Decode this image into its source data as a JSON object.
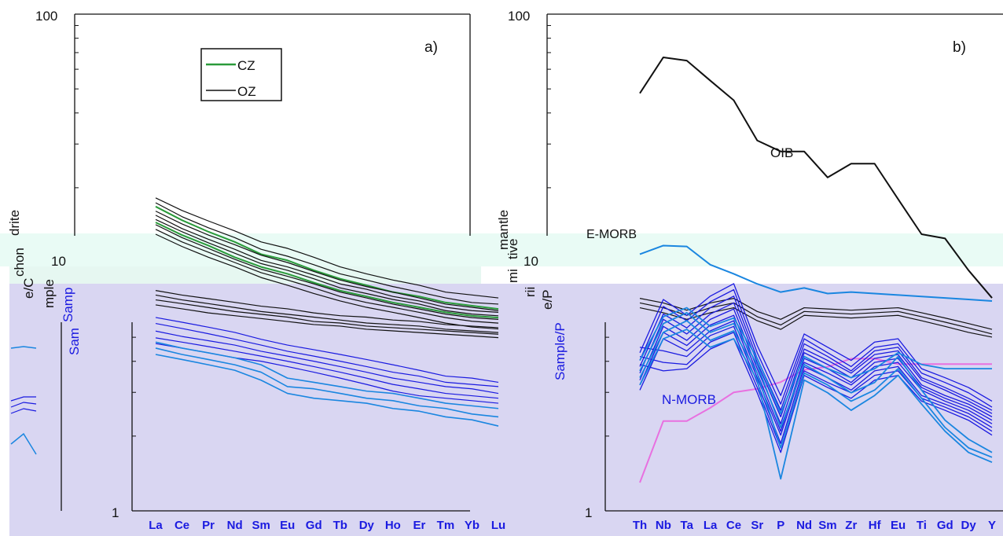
{
  "figure": {
    "colors": {
      "background_lower": "#d9d6f2",
      "background_seam": "#e9fbf5",
      "cz": "#2a9a3a",
      "oz": "#111111",
      "sample_blue": "#1a1ae0",
      "sample_cyan": "#1a86e0",
      "nmorb": "#e870e0",
      "axis": "#111111"
    }
  },
  "chart_data": [
    {
      "type": "line",
      "panel_label": "a)",
      "ylabel": "Sample/Chondrite",
      "ylabel_fragments": [
        "drite",
        "chon",
        "e/C",
        "mple",
        "Samp",
        "Sam"
      ],
      "yscale": "log",
      "ylim": [
        1,
        100
      ],
      "y_ticks": [
        "100",
        "10",
        "1"
      ],
      "categories": [
        "La",
        "Ce",
        "Pr",
        "Nd",
        "Sm",
        "Eu",
        "Gd",
        "Tb",
        "Dy",
        "Ho",
        "Er",
        "Tm",
        "Yb",
        "Lu"
      ],
      "legend": [
        "CZ",
        "OZ"
      ],
      "series": [
        {
          "name": "CZ",
          "values": [
            14.5,
            12.9,
            11.7,
            10.5,
            9.6,
            9.0,
            8.3,
            7.7,
            7.3,
            6.9,
            6.6,
            6.3,
            6.1,
            6.0
          ]
        },
        {
          "name": "CZ",
          "values": [
            16.8,
            14.8,
            13.3,
            12.1,
            10.8,
            10.2,
            9.3,
            8.6,
            8.1,
            7.6,
            7.3,
            6.9,
            6.7,
            6.5
          ]
        },
        {
          "name": "OZ",
          "values": [
            18.2,
            16.2,
            14.7,
            13.4,
            12.1,
            11.4,
            10.5,
            9.6,
            9.0,
            8.5,
            8.1,
            7.6,
            7.4,
            7.2
          ]
        },
        {
          "name": "OZ",
          "values": [
            17.4,
            15.3,
            13.8,
            12.6,
            11.3,
            10.6,
            9.8,
            9.0,
            8.5,
            8.0,
            7.6,
            7.2,
            6.9,
            6.8
          ]
        },
        {
          "name": "OZ",
          "values": [
            16.1,
            14.3,
            12.9,
            11.8,
            10.7,
            10.0,
            9.2,
            8.5,
            8.0,
            7.6,
            7.2,
            6.8,
            6.6,
            6.4
          ]
        },
        {
          "name": "OZ",
          "values": [
            15.5,
            13.7,
            12.4,
            11.3,
            10.2,
            9.6,
            8.9,
            8.2,
            7.8,
            7.3,
            7.0,
            6.6,
            6.4,
            6.3
          ]
        },
        {
          "name": "OZ",
          "values": [
            14.9,
            13.3,
            12.0,
            10.9,
            9.9,
            9.3,
            8.6,
            7.9,
            7.5,
            7.1,
            6.8,
            6.4,
            6.2,
            6.1
          ]
        },
        {
          "name": "OZ",
          "values": [
            14.2,
            12.6,
            11.4,
            10.3,
            9.4,
            8.8,
            8.2,
            7.6,
            7.2,
            6.8,
            6.5,
            6.2,
            6.0,
            5.9
          ]
        },
        {
          "name": "OZ",
          "values": [
            13.6,
            12.1,
            11.0,
            10.0,
            9.1,
            8.5,
            7.9,
            7.3,
            6.9,
            6.6,
            6.3,
            6.0,
            5.8,
            5.7
          ]
        },
        {
          "name": "OZ",
          "values": [
            13.0,
            11.6,
            10.5,
            9.6,
            8.7,
            8.1,
            7.5,
            7.0,
            6.6,
            6.3,
            6.0,
            5.7,
            5.5,
            5.4
          ]
        }
      ],
      "seam_series": [
        {
          "values": [
            9.6,
            9.2,
            8.9,
            8.6,
            8.3,
            8.1,
            7.8,
            7.6,
            7.5,
            7.3,
            7.2,
            7.0,
            6.9,
            6.8
          ]
        },
        {
          "values": [
            9.2,
            8.8,
            8.5,
            8.2,
            7.9,
            7.7,
            7.5,
            7.3,
            7.1,
            7.0,
            6.9,
            6.7,
            6.6,
            6.5
          ]
        },
        {
          "values": [
            8.8,
            8.5,
            8.2,
            7.9,
            7.7,
            7.5,
            7.2,
            7.1,
            6.9,
            6.8,
            6.7,
            6.6,
            6.5,
            6.4
          ]
        },
        {
          "values": [
            8.4,
            8.1,
            7.8,
            7.6,
            7.4,
            7.2,
            7.0,
            6.9,
            6.7,
            6.6,
            6.5,
            6.4,
            6.3,
            6.2
          ]
        }
      ],
      "lower_series": [
        {
          "values": [
            9.3,
            8.9,
            8.5,
            8.1,
            7.6,
            7.2,
            6.9,
            6.6,
            6.3,
            6.0,
            5.7,
            5.4,
            5.3,
            5.1
          ]
        },
        {
          "values": [
            8.8,
            8.4,
            8.0,
            7.6,
            7.2,
            6.8,
            6.5,
            6.2,
            5.9,
            5.6,
            5.4,
            5.1,
            5.0,
            4.9
          ]
        },
        {
          "values": [
            8.2,
            7.8,
            7.5,
            7.2,
            6.8,
            6.5,
            6.2,
            5.9,
            5.6,
            5.3,
            5.1,
            4.9,
            4.8,
            4.6
          ]
        },
        {
          "values": [
            7.7,
            7.4,
            7.1,
            6.8,
            6.5,
            6.2,
            5.9,
            5.6,
            5.3,
            5.0,
            4.8,
            4.6,
            4.5,
            4.4
          ]
        },
        {
          "values": [
            7.3,
            7.0,
            6.7,
            6.4,
            6.2,
            5.9,
            5.6,
            5.3,
            5.0,
            4.7,
            4.5,
            4.4,
            4.3,
            4.2
          ]
        }
      ],
      "lower_cyan_series": [
        {
          "values": [
            7.4,
            7.0,
            6.7,
            6.4,
            6.0,
            5.3,
            5.1,
            4.9,
            4.7,
            4.6,
            4.4,
            4.2,
            4.1,
            4.0
          ]
        },
        {
          "values": [
            7.0,
            6.6,
            6.3,
            6.0,
            5.6,
            4.9,
            4.8,
            4.6,
            4.4,
            4.3,
            4.1,
            4.0,
            3.8,
            3.7
          ]
        },
        {
          "values": [
            6.6,
            6.3,
            6.0,
            5.7,
            5.2,
            4.6,
            4.4,
            4.3,
            4.2,
            4.0,
            3.9,
            3.7,
            3.6,
            3.4
          ]
        }
      ]
    },
    {
      "type": "line",
      "panel_label": "b)",
      "ylabel": "Sample/Primitive mantle",
      "ylabel_fragments": [
        "mantle",
        "tive",
        "mi",
        "rii",
        "e/P",
        "Sample/P"
      ],
      "yscale": "log",
      "ylim": [
        1,
        100
      ],
      "y_ticks": [
        "100",
        "10",
        "1"
      ],
      "categories": [
        "Th",
        "Nb",
        "Ta",
        "La",
        "Ce",
        "Sr",
        "P",
        "Nd",
        "Sm",
        "Zr",
        "Hf",
        "Eu",
        "Ti",
        "Gd",
        "Dy",
        "Y"
      ],
      "annotations": [
        "OIB",
        "E-MORB",
        "N-MORB"
      ],
      "series": [
        {
          "name": "OIB",
          "values": [
            48,
            67,
            65,
            54,
            45,
            31,
            28,
            28,
            22,
            25,
            25,
            18,
            13,
            12.5,
            9.3,
            7.2
          ]
        },
        {
          "name": "E-MORB",
          "values": [
            10.8,
            11.7,
            11.6,
            9.8,
            9.0,
            8.2,
            7.6,
            7.9,
            7.5,
            7.6,
            7.5,
            7.4,
            7.3,
            7.2,
            7.1,
            7.0
          ]
        },
        {
          "name": "N-MORB",
          "values": [
            1.3,
            2.3,
            2.3,
            2.6,
            3.0,
            3.1,
            3.3,
            3.7,
            3.8,
            4.1,
            4.1,
            3.9,
            3.9,
            3.9,
            3.9,
            3.9
          ]
        }
      ],
      "sample_series": [
        {
          "values": [
            5.8,
            9.5,
            8.2,
            9.8,
            11.0,
            6.2,
            3.9,
            6.9,
            6.1,
            5.4,
            6.4,
            6.6,
            5.0,
            4.6,
            4.2,
            3.7
          ]
        },
        {
          "values": [
            5.4,
            8.9,
            7.8,
            9.3,
            10.4,
            5.8,
            3.6,
            6.6,
            5.8,
            5.1,
            6.1,
            6.3,
            4.8,
            4.4,
            4.0,
            3.5
          ]
        },
        {
          "values": [
            5.1,
            8.3,
            7.3,
            8.8,
            9.8,
            5.5,
            3.4,
            6.3,
            5.6,
            4.9,
            5.9,
            6.1,
            4.6,
            4.2,
            3.8,
            3.4
          ]
        },
        {
          "values": [
            4.8,
            7.9,
            6.9,
            8.3,
            9.2,
            5.3,
            3.2,
            6.0,
            5.4,
            4.8,
            5.7,
            5.9,
            4.5,
            4.1,
            3.7,
            3.3
          ]
        },
        {
          "values": [
            4.5,
            7.4,
            6.5,
            7.9,
            8.7,
            5.0,
            3.0,
            5.8,
            5.2,
            4.6,
            5.5,
            5.7,
            4.3,
            3.9,
            3.6,
            3.2
          ]
        },
        {
          "values": [
            4.3,
            7.0,
            6.2,
            7.5,
            8.2,
            4.8,
            2.8,
            5.5,
            5.0,
            4.4,
            5.3,
            5.5,
            4.2,
            3.8,
            3.5,
            3.1
          ]
        },
        {
          "values": [
            4.1,
            6.6,
            5.9,
            7.1,
            7.8,
            4.6,
            2.7,
            5.3,
            4.8,
            4.3,
            5.1,
            5.3,
            4.1,
            3.7,
            3.4,
            3.0
          ]
        },
        {
          "values": [
            6.1,
            5.9,
            5.6,
            6.8,
            7.4,
            4.4,
            2.5,
            5.1,
            4.6,
            4.1,
            4.9,
            5.1,
            3.9,
            3.6,
            3.3,
            2.9
          ]
        },
        {
          "values": [
            5.6,
            5.3,
            5.2,
            6.4,
            7.0,
            4.2,
            2.4,
            4.9,
            4.4,
            4.0,
            4.7,
            4.9,
            3.8,
            3.5,
            3.2,
            2.8
          ]
        },
        {
          "values": [
            5.2,
            4.9,
            5.0,
            6.0,
            6.6,
            4.0,
            2.3,
            4.7,
            4.2,
            3.8,
            4.5,
            4.7,
            3.7,
            3.4,
            3.1,
            2.7
          ]
        }
      ],
      "sample_cyan_series": [
        {
          "values": [
            4.9,
            7.6,
            8.4,
            7.0,
            7.6,
            5.2,
            2.9,
            5.2,
            4.6,
            4.0,
            4.4,
            5.6,
            4.1,
            3.1,
            2.6,
            2.3
          ]
        },
        {
          "values": [
            4.6,
            7.0,
            7.8,
            6.5,
            7.1,
            4.8,
            2.4,
            4.8,
            4.3,
            3.7,
            4.1,
            5.0,
            3.8,
            2.9,
            2.4,
            2.2
          ]
        },
        {
          "values": [
            4.3,
            6.6,
            7.2,
            6.1,
            6.6,
            4.5,
            1.8,
            4.5,
            4.0,
            3.4,
            3.9,
            4.7,
            3.6,
            2.8,
            2.3,
            2.1
          ]
        },
        {
          "values": [
            5.4,
            8.1,
            8.8,
            7.4,
            8.0,
            5.5,
            3.3,
            5.6,
            5.0,
            4.6,
            5.0,
            5.8,
            5.2,
            5.0,
            5.0,
            5.0
          ]
        }
      ],
      "seam_series": [
        {
          "values": [
            9.6,
            9.2,
            8.6,
            9.2,
            9.6,
            8.5,
            7.9,
            8.8,
            8.7,
            8.6,
            8.7,
            8.8,
            8.4,
            8.0,
            7.6,
            7.2
          ]
        },
        {
          "values": [
            9.2,
            8.8,
            8.2,
            8.8,
            9.2,
            8.1,
            7.5,
            8.5,
            8.4,
            8.3,
            8.4,
            8.5,
            8.1,
            7.7,
            7.3,
            6.9
          ]
        },
        {
          "values": [
            8.8,
            8.4,
            7.9,
            8.4,
            8.8,
            7.8,
            7.2,
            8.2,
            8.1,
            8.0,
            8.1,
            8.2,
            7.8,
            7.4,
            7.0,
            6.7
          ]
        }
      ]
    }
  ]
}
